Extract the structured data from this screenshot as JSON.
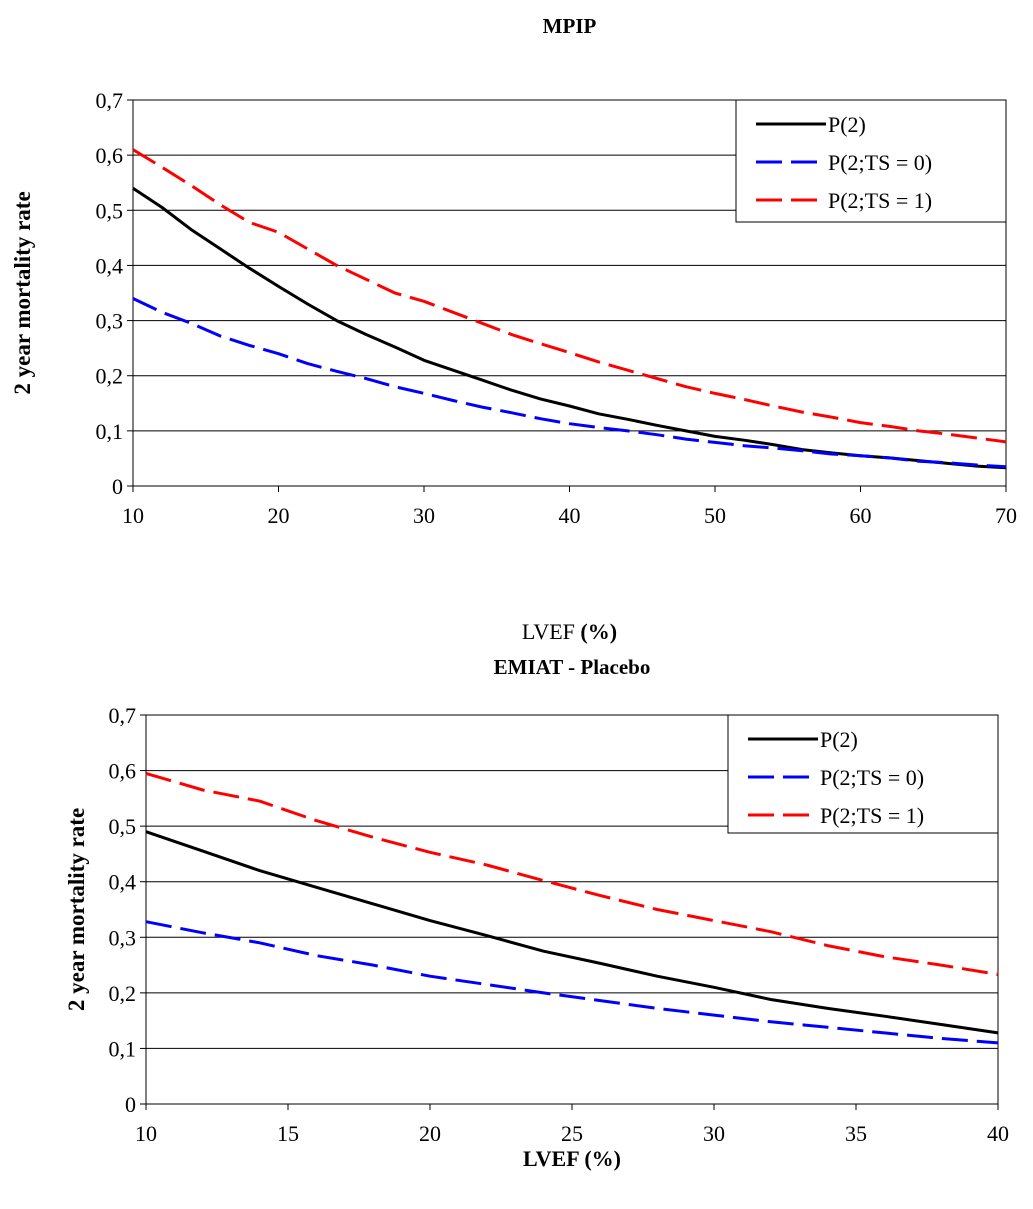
{
  "chart_data": [
    {
      "type": "line",
      "title": "MPIP",
      "xlabel_main": "LVEF",
      "xlabel_unit": "(%)",
      "ylabel": "2 year mortality rate",
      "xlim": [
        10,
        70
      ],
      "ylim": [
        0,
        0.7
      ],
      "x_ticks": [
        10,
        20,
        30,
        40,
        50,
        60,
        70
      ],
      "y_ticks": [
        0,
        0.1,
        0.2,
        0.3,
        0.4,
        0.5,
        0.6,
        0.7
      ],
      "x_tick_labels": [
        "10",
        "20",
        "30",
        "40",
        "50",
        "60",
        "70"
      ],
      "y_tick_labels": [
        "0",
        "0,1",
        "0,2",
        "0,3",
        "0,4",
        "0,5",
        "0,6",
        "0,7"
      ],
      "grid": "horizontal",
      "legend": "top-right",
      "series": [
        {
          "name": "P(2)",
          "color": "#000000",
          "dash": "solid",
          "x": [
            10,
            12,
            14,
            16,
            18,
            20,
            22,
            24,
            26,
            28,
            30,
            32,
            34,
            36,
            38,
            40,
            42,
            44,
            46,
            48,
            50,
            52,
            54,
            56,
            58,
            60,
            62,
            64,
            66,
            68,
            70
          ],
          "y": [
            0.54,
            0.505,
            0.465,
            0.43,
            0.395,
            0.362,
            0.33,
            0.3,
            0.275,
            0.252,
            0.228,
            0.21,
            0.192,
            0.174,
            0.158,
            0.145,
            0.131,
            0.121,
            0.11,
            0.1,
            0.09,
            0.083,
            0.075,
            0.066,
            0.06,
            0.055,
            0.051,
            0.046,
            0.041,
            0.036,
            0.033
          ]
        },
        {
          "name": "P(2;TS = 0)",
          "color": "#0000FF",
          "dash": "dash",
          "x": [
            10,
            12,
            14,
            16,
            18,
            20,
            22,
            24,
            26,
            28,
            30,
            32,
            34,
            36,
            38,
            40,
            42,
            44,
            46,
            48,
            50,
            52,
            54,
            56,
            58,
            60,
            62,
            64,
            66,
            68,
            70
          ],
          "y": [
            0.34,
            0.315,
            0.295,
            0.272,
            0.255,
            0.24,
            0.222,
            0.208,
            0.195,
            0.18,
            0.168,
            0.155,
            0.143,
            0.133,
            0.122,
            0.113,
            0.106,
            0.1,
            0.093,
            0.085,
            0.079,
            0.073,
            0.069,
            0.064,
            0.058,
            0.055,
            0.051,
            0.045,
            0.042,
            0.038,
            0.035
          ]
        },
        {
          "name": "P(2;TS = 1)",
          "color": "#FF0000",
          "dash": "dash",
          "x": [
            10,
            12,
            14,
            16,
            18,
            20,
            22,
            24,
            26,
            28,
            30,
            32,
            34,
            36,
            38,
            40,
            42,
            44,
            46,
            48,
            50,
            52,
            54,
            56,
            58,
            60,
            62,
            64,
            66,
            68,
            70
          ],
          "y": [
            0.61,
            0.578,
            0.545,
            0.51,
            0.478,
            0.46,
            0.43,
            0.4,
            0.375,
            0.35,
            0.335,
            0.315,
            0.295,
            0.275,
            0.258,
            0.242,
            0.225,
            0.21,
            0.195,
            0.18,
            0.168,
            0.157,
            0.145,
            0.134,
            0.125,
            0.115,
            0.108,
            0.1,
            0.094,
            0.087,
            0.08
          ]
        }
      ]
    },
    {
      "type": "line",
      "title": "EMIAT - Placebo",
      "xlabel_main": "LVEF",
      "xlabel_unit": "(%)",
      "ylabel": "2 year mortality rate",
      "xlim": [
        10,
        40
      ],
      "ylim": [
        0,
        0.7
      ],
      "x_ticks": [
        10,
        15,
        20,
        25,
        30,
        35,
        40
      ],
      "y_ticks": [
        0,
        0.1,
        0.2,
        0.3,
        0.4,
        0.5,
        0.6,
        0.7
      ],
      "x_tick_labels": [
        "10",
        "15",
        "20",
        "25",
        "30",
        "35",
        "40"
      ],
      "y_tick_labels": [
        "0",
        "0,1",
        "0,2",
        "0,3",
        "0,4",
        "0,5",
        "0,6",
        "0,7"
      ],
      "grid": "horizontal",
      "legend": "top-right",
      "series": [
        {
          "name": "P(2)",
          "color": "#000000",
          "dash": "solid",
          "x": [
            10,
            12,
            14,
            16,
            18,
            20,
            22,
            24,
            26,
            28,
            30,
            32,
            34,
            36,
            38,
            40
          ],
          "y": [
            0.49,
            0.455,
            0.42,
            0.39,
            0.36,
            0.33,
            0.303,
            0.275,
            0.253,
            0.23,
            0.21,
            0.188,
            0.172,
            0.158,
            0.143,
            0.128
          ]
        },
        {
          "name": "P(2;TS = 0)",
          "color": "#0000FF",
          "dash": "dash",
          "x": [
            10,
            12,
            14,
            16,
            18,
            20,
            22,
            24,
            26,
            28,
            30,
            32,
            34,
            36,
            38,
            40
          ],
          "y": [
            0.328,
            0.308,
            0.29,
            0.267,
            0.25,
            0.23,
            0.215,
            0.2,
            0.186,
            0.172,
            0.16,
            0.148,
            0.138,
            0.128,
            0.118,
            0.11
          ]
        },
        {
          "name": "P(2;TS = 1)",
          "color": "#FF0000",
          "dash": "dash",
          "x": [
            10,
            12,
            14,
            16,
            18,
            20,
            22,
            24,
            26,
            28,
            30,
            32,
            34,
            36,
            38,
            40
          ],
          "y": [
            0.595,
            0.565,
            0.545,
            0.51,
            0.48,
            0.453,
            0.43,
            0.402,
            0.375,
            0.35,
            0.33,
            0.31,
            0.285,
            0.265,
            0.25,
            0.233
          ]
        }
      ]
    }
  ]
}
